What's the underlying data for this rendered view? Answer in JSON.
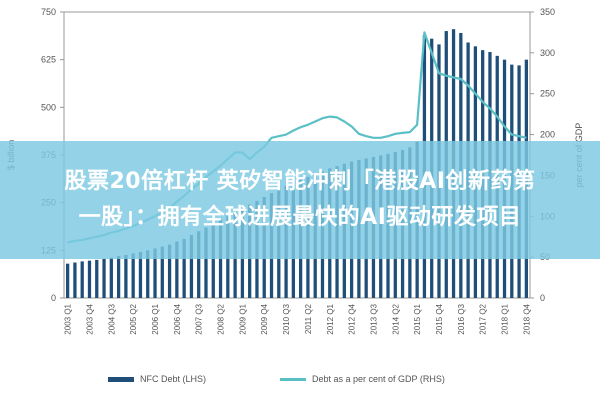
{
  "chart_data": {
    "type": "bar",
    "categories": [
      "2003 Q1",
      "2003 Q2",
      "2003 Q3",
      "2003 Q4",
      "2004 Q1",
      "2004 Q2",
      "2004 Q3",
      "2004 Q4",
      "2005 Q1",
      "2005 Q2",
      "2005 Q3",
      "2005 Q4",
      "2006 Q1",
      "2006 Q2",
      "2006 Q3",
      "2006 Q4",
      "2007 Q1",
      "2007 Q2",
      "2007 Q3",
      "2007 Q4",
      "2008 Q1",
      "2008 Q2",
      "2008 Q3",
      "2008 Q4",
      "2009 Q1",
      "2009 Q2",
      "2009 Q3",
      "2009 Q4",
      "2010 Q1",
      "2010 Q2",
      "2010 Q3",
      "2010 Q4",
      "2011 Q1",
      "2011 Q2",
      "2011 Q3",
      "2011 Q4",
      "2012 Q1",
      "2012 Q2",
      "2012 Q3",
      "2012 Q4",
      "2013 Q1",
      "2013 Q2",
      "2013 Q3",
      "2013 Q4",
      "2014 Q1",
      "2014 Q2",
      "2014 Q3",
      "2014 Q4",
      "2015 Q1",
      "2015 Q2",
      "2015 Q3",
      "2015 Q4",
      "2016 Q1",
      "2016 Q2",
      "2016 Q3",
      "2016 Q4",
      "2017 Q1",
      "2017 Q2",
      "2017 Q3",
      "2017 Q4",
      "2018 Q1",
      "2018 Q2",
      "2018 Q3",
      "2018 Q4"
    ],
    "tick_labels": [
      "2003 Q1",
      "2003 Q4",
      "2004 Q3",
      "2005 Q2",
      "2006 Q1",
      "2006 Q4",
      "2007 Q3",
      "2008 Q2",
      "2009 Q1",
      "2009 Q4",
      "2010 Q3",
      "2011 Q2",
      "2012 Q1",
      "2012 Q4",
      "2013 Q3",
      "2014 Q2",
      "2015 Q1",
      "2015 Q4",
      "2016 Q3",
      "2017 Q2",
      "2018 Q1",
      "2018 Q4"
    ],
    "series": [
      {
        "name": "NFC Debt (LHS)",
        "axis": "left",
        "values": [
          90,
          93,
          96,
          98,
          100,
          103,
          106,
          110,
          113,
          117,
          121,
          125,
          130,
          135,
          140,
          148,
          155,
          165,
          175,
          185,
          195,
          205,
          215,
          225,
          235,
          245,
          255,
          265,
          275,
          285,
          295,
          305,
          312,
          318,
          325,
          332,
          340,
          346,
          352,
          358,
          362,
          366,
          370,
          374,
          378,
          383,
          388,
          395,
          410,
          690,
          680,
          665,
          700,
          705,
          695,
          670,
          660,
          650,
          645,
          635,
          625,
          612,
          610,
          625
        ]
      },
      {
        "name": "Debt as a per cent of GDP (RHS)",
        "axis": "right",
        "values": [
          68,
          70,
          71,
          73,
          75,
          77,
          80,
          82,
          85,
          88,
          92,
          96,
          100,
          105,
          110,
          118,
          125,
          133,
          140,
          148,
          155,
          162,
          170,
          178,
          178,
          170,
          178,
          185,
          196,
          198,
          200,
          205,
          209,
          212,
          216,
          220,
          222,
          221,
          216,
          210,
          201,
          198,
          196,
          196,
          198,
          201,
          202,
          203,
          212,
          325,
          300,
          275,
          272,
          270,
          268,
          260,
          250,
          240,
          232,
          222,
          210,
          200,
          198,
          196
        ]
      }
    ],
    "xlabel": "",
    "ylabel": "$ billion",
    "y2label": "per cent of GDP",
    "ylim": [
      0,
      750
    ],
    "y2lim": [
      0,
      350
    ],
    "yticks": [
      0,
      125,
      250,
      375,
      500,
      625,
      750
    ],
    "y2ticks": [
      0,
      50,
      100,
      150,
      200,
      250,
      300,
      350
    ],
    "grid": false,
    "legend": "bottom",
    "colors": {
      "bars": "#1f4e79",
      "line": "#5bc0c5",
      "axis": "#999999",
      "text": "#555555",
      "banner": "#7dc9e2"
    }
  },
  "overlay": {
    "line1": "股票20倍杠杆 英矽智能冲刺「港股AI创新药第",
    "line2": "一股」：拥有全球进展最快的AI驱动研发项目"
  }
}
